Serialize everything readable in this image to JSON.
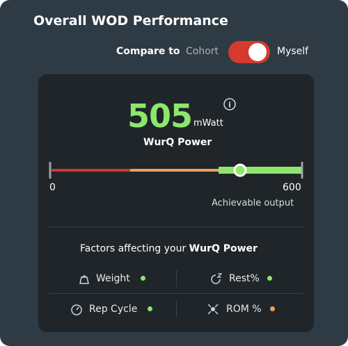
{
  "header": {
    "title": "Overall WOD Performance"
  },
  "compare": {
    "label": "Compare to",
    "left": "Cohort",
    "right": "Myself"
  },
  "score": {
    "value": 505,
    "unit": "mWatt",
    "name": "WurQ Power",
    "info": "i"
  },
  "gauge": {
    "min": 0,
    "max": 600,
    "caption": "Achievable output"
  },
  "factors": {
    "title_prefix": "Factors affecting your",
    "title_bold": "WurQ Power",
    "items": [
      {
        "label": "Weight"
      },
      {
        "label": "Rest%"
      },
      {
        "label": "Rep Cycle"
      },
      {
        "label": "ROM %"
      }
    ]
  }
}
